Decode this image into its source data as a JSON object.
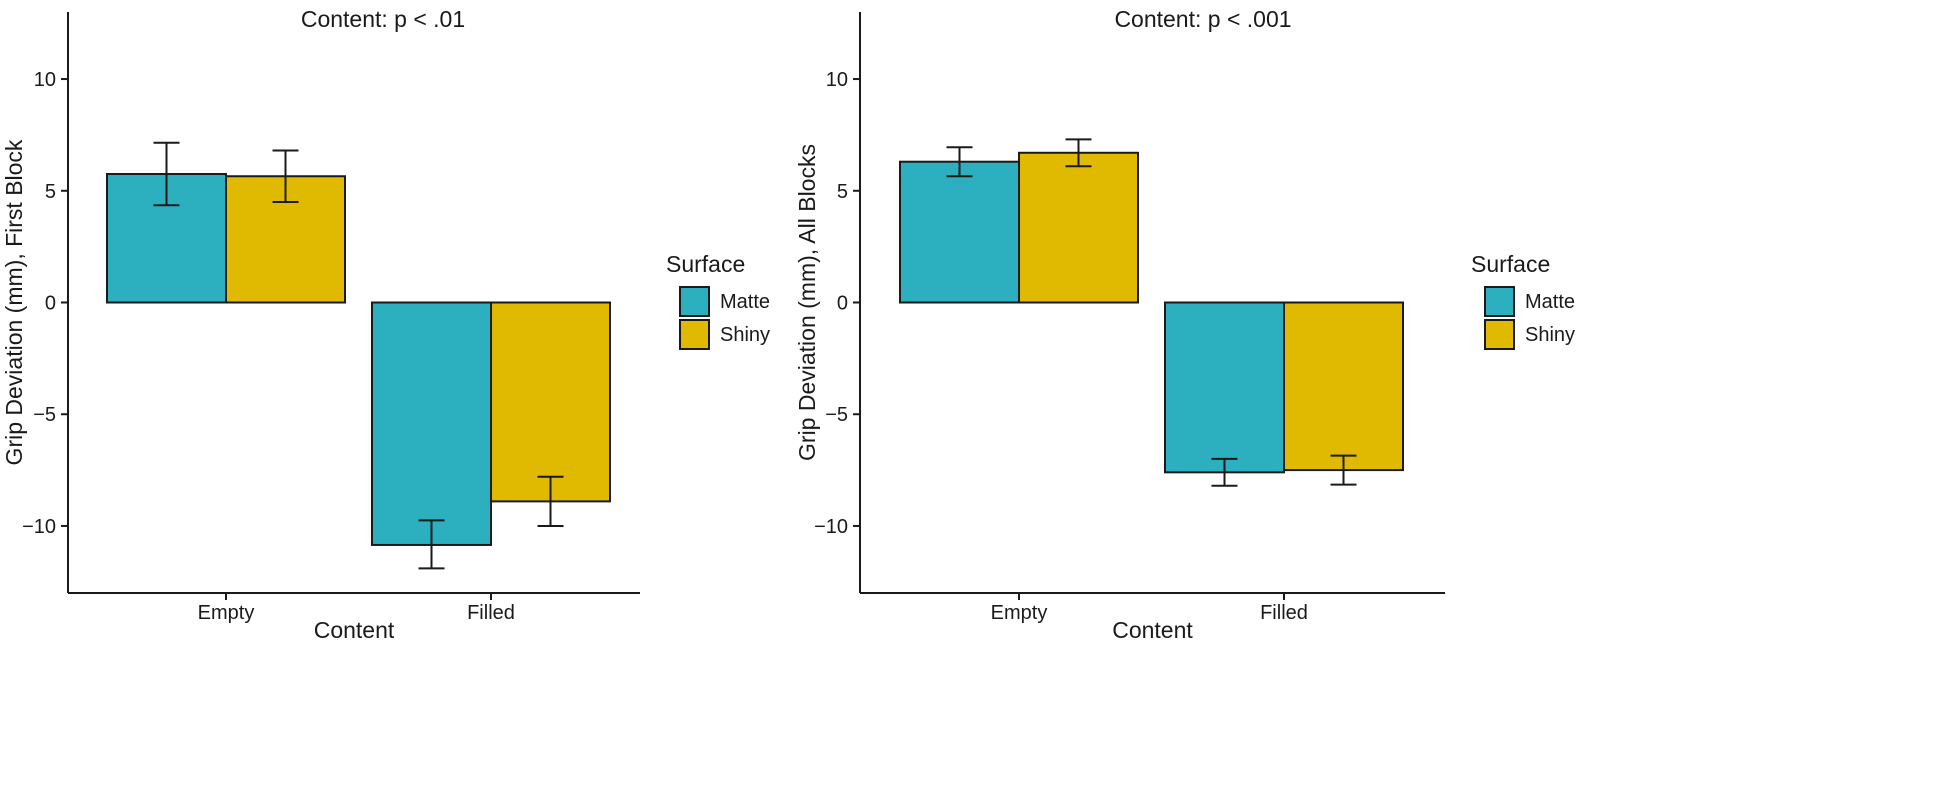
{
  "chart_data": [
    {
      "type": "bar",
      "title": "Content: p < .01",
      "xlabel": "Content",
      "ylabel": "Grip Deviation (mm), First Block",
      "ylim": [
        -13,
        13
      ],
      "yticks": [
        -10,
        -5,
        0,
        5,
        10
      ],
      "ytick_labels": [
        "−10",
        "−5",
        "0",
        "5",
        "10"
      ],
      "categories": [
        "Empty",
        "Filled"
      ],
      "series": [
        {
          "name": "Matte",
          "color": "#2CAFBE",
          "values": [
            5.75,
            -10.85
          ],
          "err_low": [
            4.35,
            -11.9
          ],
          "err_high": [
            7.15,
            -9.75
          ]
        },
        {
          "name": "Shiny",
          "color": "#E0BA00",
          "values": [
            5.65,
            -8.9
          ],
          "err_low": [
            4.5,
            -10.0
          ],
          "err_high": [
            6.8,
            -7.8
          ]
        }
      ],
      "legend": {
        "title": "Surface",
        "position": "right"
      }
    },
    {
      "type": "bar",
      "title": "Content: p < .001",
      "xlabel": "Content",
      "ylabel": "Grip Deviation (mm), All Blocks",
      "ylim": [
        -13,
        13
      ],
      "yticks": [
        -10,
        -5,
        0,
        5,
        10
      ],
      "ytick_labels": [
        "−10",
        "−5",
        "0",
        "5",
        "10"
      ],
      "categories": [
        "Empty",
        "Filled"
      ],
      "series": [
        {
          "name": "Matte",
          "color": "#2CAFBE",
          "values": [
            6.3,
            -7.6
          ],
          "err_low": [
            5.65,
            -8.2
          ],
          "err_high": [
            6.95,
            -7.0
          ]
        },
        {
          "name": "Shiny",
          "color": "#E0BA00",
          "values": [
            6.7,
            -7.5
          ],
          "err_low": [
            6.1,
            -8.15
          ],
          "err_high": [
            7.3,
            -6.85
          ]
        }
      ],
      "legend": {
        "title": "Surface",
        "position": "right"
      }
    }
  ]
}
